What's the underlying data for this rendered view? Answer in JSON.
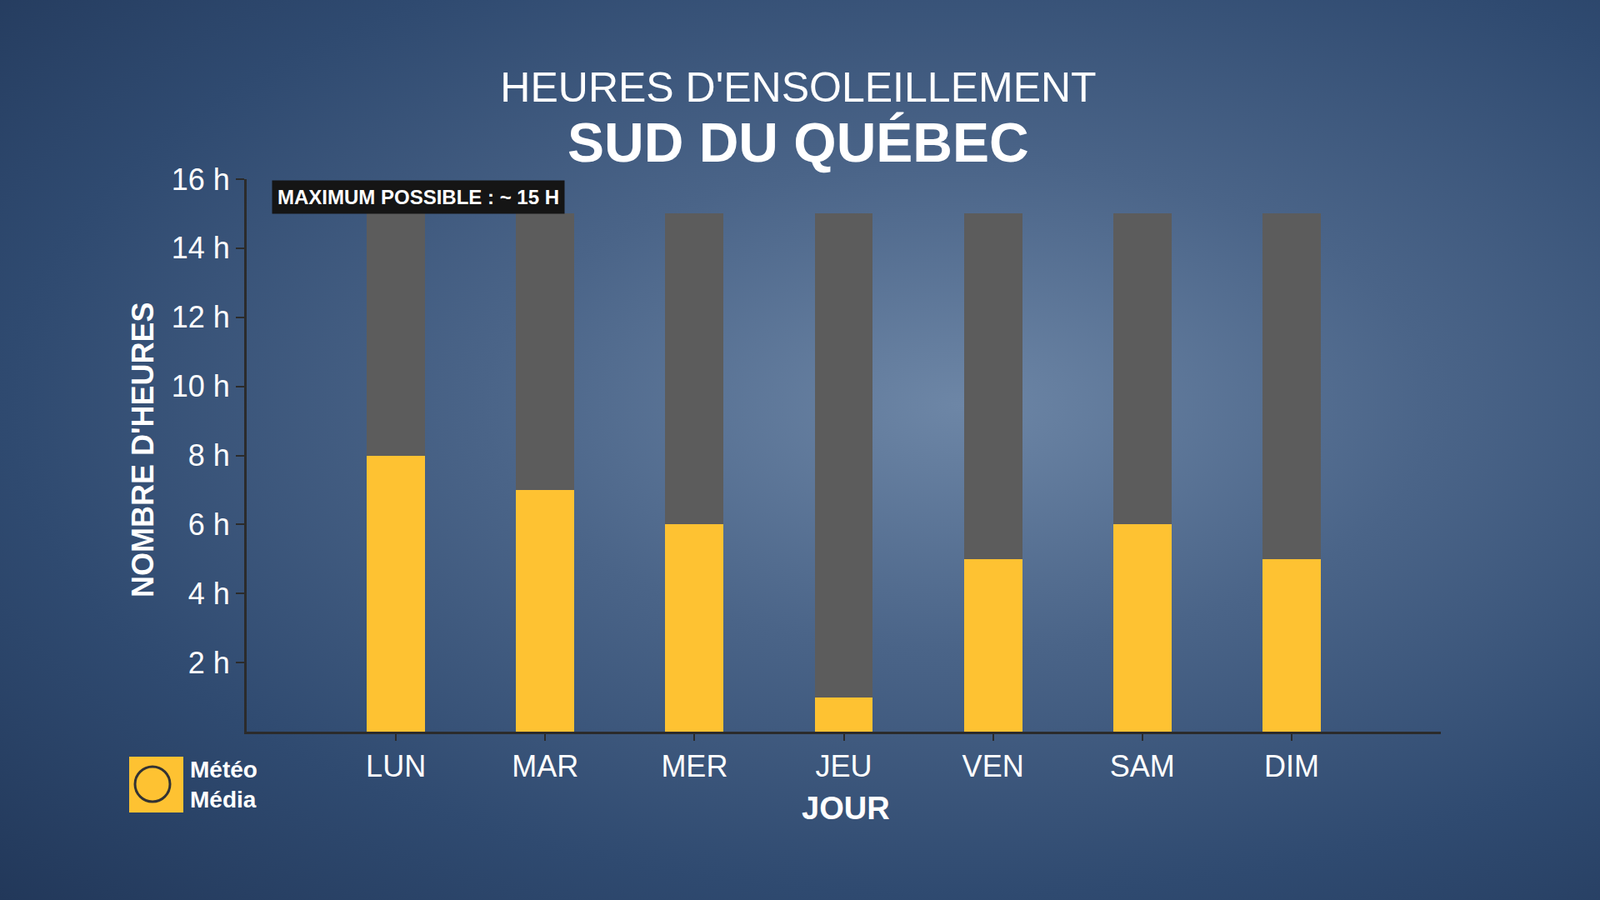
{
  "chart_data": {
    "type": "bar",
    "title": "HEURES D'ENSOLEILLEMENT",
    "subtitle": "SUD DU QUÉBEC",
    "x_label": "JOUR",
    "y_label": "NOMBRE D'HEURES",
    "annotations": [
      "MAXIMUM POSSIBLE : ~ 15 H",
      "Météo Média"
    ],
    "categories": [
      "LUN",
      "MAR",
      "MER",
      "JEU",
      "VEN",
      "SAM",
      "DIM"
    ],
    "series": [
      {
        "color": "#FEC232",
        "values": [
          8,
          7,
          6,
          1,
          5,
          6,
          5
        ]
      },
      {
        "color": "#5C5C5C",
        "values": [
          7,
          8,
          9,
          14,
          10,
          9,
          10
        ]
      }
    ],
    "stacked": true,
    "ylim": [
      0,
      16
    ],
    "yticks": [
      {
        "value": 2,
        "label": "2 h"
      },
      {
        "value": 4,
        "label": "4 h"
      },
      {
        "value": 6,
        "label": "6 h"
      },
      {
        "value": 8,
        "label": "8 h"
      },
      {
        "value": 10,
        "label": "10 h"
      },
      {
        "value": 12,
        "label": "12 h"
      },
      {
        "value": 14,
        "label": "14 h"
      },
      {
        "value": 16,
        "label": "16 h"
      }
    ],
    "grid": false
  }
}
